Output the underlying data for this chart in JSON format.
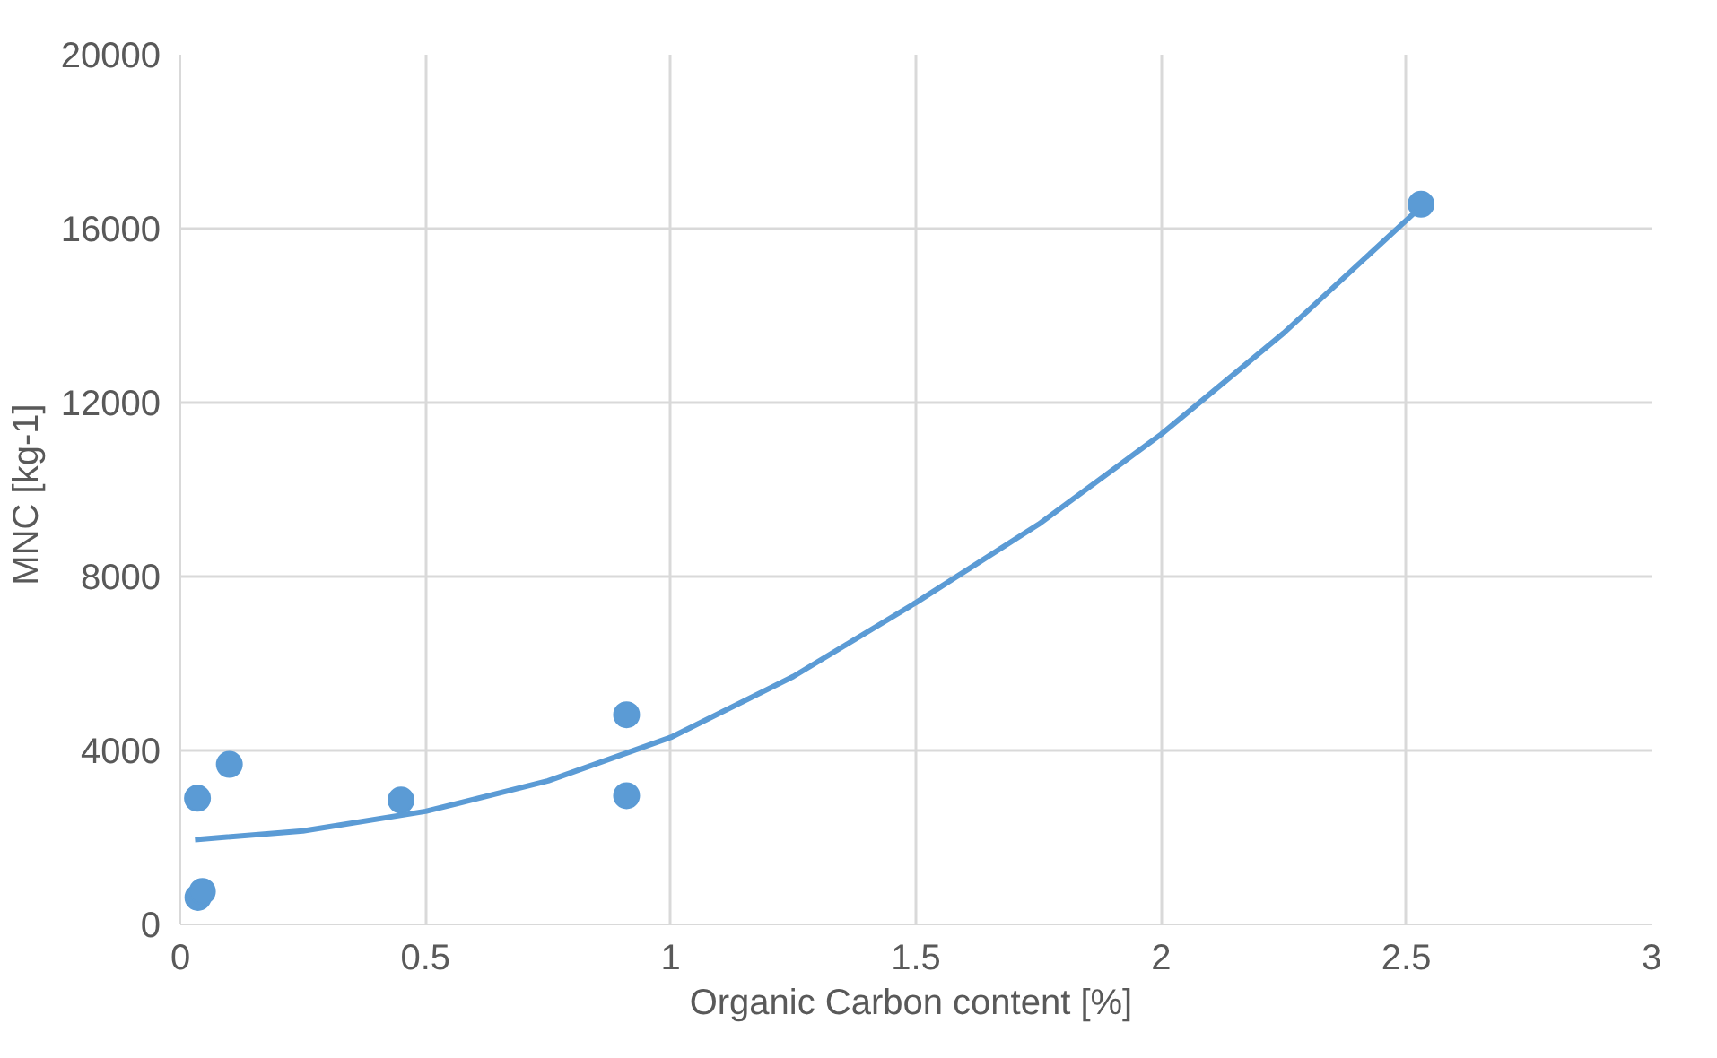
{
  "chart_data": {
    "type": "scatter",
    "xlabel": "Organic Carbon content  [%]",
    "ylabel": "MNC  [kg-1]",
    "xlim": [
      0,
      3
    ],
    "ylim": [
      0,
      20000
    ],
    "xticks": [
      0,
      0.5,
      1,
      1.5,
      2,
      2.5,
      3
    ],
    "yticks": [
      0,
      4000,
      8000,
      12000,
      16000,
      20000
    ],
    "grid": true,
    "marker": "circle",
    "series": [
      {
        "color": "#5b9bd5",
        "x": [
          0.035,
          0.036,
          0.045,
          0.1,
          0.45,
          0.91,
          0.91,
          2.53
        ],
        "values": [
          2900,
          620,
          760,
          3680,
          2860,
          4820,
          2960,
          16560
        ]
      },
      {
        "type": "line",
        "color": "#5b9bd5",
        "marker": "none",
        "line_style": "solid",
        "x": [
          0.03,
          0.25,
          0.5,
          0.75,
          1,
          1.25,
          1.5,
          1.75,
          2,
          2.25,
          2.52
        ],
        "values": [
          1950,
          2150,
          2600,
          3300,
          4300,
          5700,
          7400,
          9200,
          11270,
          13600,
          16400
        ]
      }
    ]
  }
}
